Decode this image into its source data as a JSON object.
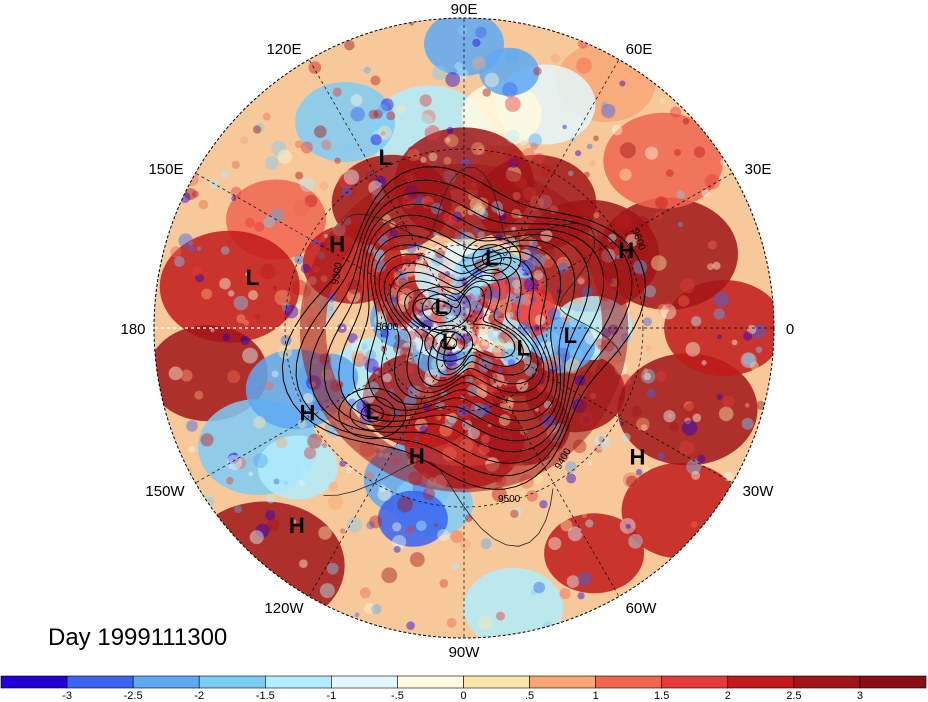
{
  "map": {
    "projection": "north polar stereographic",
    "longitude_labels": [
      {
        "text": "90E",
        "lon": 90
      },
      {
        "text": "60E",
        "lon": 60
      },
      {
        "text": "30E",
        "lon": 30
      },
      {
        "text": "0",
        "lon": 0
      },
      {
        "text": "30W",
        "lon": -30
      },
      {
        "text": "60W",
        "lon": -60
      },
      {
        "text": "90W",
        "lon": -90
      },
      {
        "text": "120W",
        "lon": -120
      },
      {
        "text": "150W",
        "lon": -150
      },
      {
        "text": "180",
        "lon": 180
      },
      {
        "text": "150E",
        "lon": 150
      },
      {
        "text": "120E",
        "lon": 120
      }
    ],
    "pressure_centers": [
      {
        "type": "L",
        "text": "L",
        "lon": 115,
        "lat": 28
      },
      {
        "type": "H",
        "text": "H",
        "lon": 147,
        "lat": 38
      },
      {
        "type": "L",
        "text": "L",
        "lon": 167,
        "lat": 20
      },
      {
        "type": "H",
        "text": "H",
        "lon": -151,
        "lat": 30
      },
      {
        "type": "L",
        "text": "L",
        "lon": -137,
        "lat": 46
      },
      {
        "type": "H",
        "text": "H",
        "lon": -110,
        "lat": 42
      },
      {
        "type": "H",
        "text": "H",
        "lon": -130,
        "lat": 10
      },
      {
        "type": "L",
        "text": "L",
        "lon": 68,
        "lat": 63
      },
      {
        "type": "L",
        "text": "L",
        "lon": 139,
        "lat": 79
      },
      {
        "type": "L",
        "text": "L",
        "lon": -135,
        "lat": 82
      },
      {
        "type": "L",
        "text": "L",
        "lon": -20,
        "lat": 67
      },
      {
        "type": "L",
        "text": "L",
        "lon": -5,
        "lat": 52
      },
      {
        "type": "H",
        "text": "H",
        "lon": 25,
        "lat": 30
      },
      {
        "type": "H",
        "text": "H",
        "lon": -37,
        "lat": 20
      }
    ],
    "contour_labels": [
      "9300",
      "9400",
      "9500",
      "9600",
      "8600"
    ],
    "shading_colors": [
      "#2400d6",
      "#3a64f0",
      "#5ea8f2",
      "#7ecbf6",
      "#b2edfb",
      "#e3f8fd",
      "#fffae0",
      "#fbe6a8",
      "#f8a675",
      "#f0664f",
      "#e43a3a",
      "#c11a1a",
      "#a11518"
    ]
  },
  "caption": {
    "day_label": "Day 1999111300"
  },
  "colorbar": {
    "colors": [
      "#2400d6",
      "#3a64f0",
      "#5ea8f2",
      "#7ecbf6",
      "#b2edfb",
      "#e3f8fd",
      "#fffae0",
      "#fbe6a8",
      "#f8a675",
      "#f0664f",
      "#e43a3a",
      "#c11a1a",
      "#a11518",
      "#8a0f14"
    ],
    "tick_labels": [
      "-3",
      "-2.5",
      "-2",
      "-1.5",
      "-1",
      "-.5",
      "0",
      ".5",
      "1",
      "1.5",
      "2",
      "2.5",
      "3"
    ]
  }
}
